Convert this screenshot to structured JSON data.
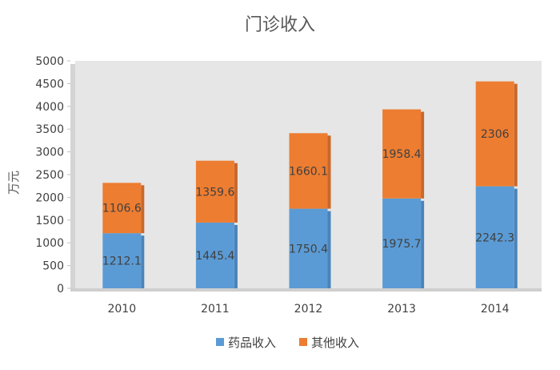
{
  "chart_data": {
    "type": "bar",
    "stacked": true,
    "title": "门诊收入",
    "ylabel": "万元",
    "xlabel": "",
    "categories": [
      "2010",
      "2011",
      "2012",
      "2013",
      "2014"
    ],
    "series": [
      {
        "name": "药品收入",
        "color": "#5b9bd5",
        "values": [
          1212.1,
          1445.4,
          1750.4,
          1975.7,
          2242.3
        ]
      },
      {
        "name": "其他收入",
        "color": "#ed7d31",
        "values": [
          1106.6,
          1359.6,
          1660.1,
          1958.4,
          2306
        ]
      }
    ],
    "data_labels": [
      [
        "1212.1",
        "1445.4",
        "1750.4",
        "1975.7",
        "2242.3"
      ],
      [
        "1106.6",
        "1359.6",
        "1660.1",
        "1958.4",
        "2306"
      ]
    ],
    "ylim": [
      0,
      5000
    ],
    "yticks": [
      0,
      500,
      1000,
      1500,
      2000,
      2500,
      3000,
      3500,
      4000,
      4500,
      5000
    ],
    "grid": false,
    "legend_position": "bottom",
    "plot_background": "#e6e6e6"
  }
}
